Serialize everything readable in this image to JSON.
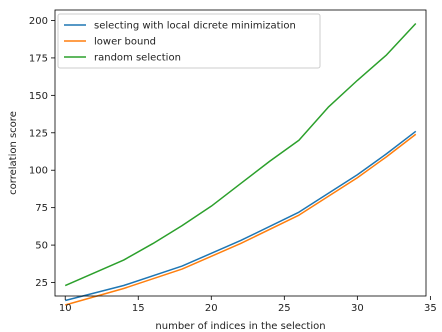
{
  "chart_data": {
    "type": "line",
    "title": "",
    "xlabel": "number of indices in the selection",
    "ylabel": "correlation score",
    "xlim": [
      9.3,
      34.7
    ],
    "ylim": [
      16,
      207
    ],
    "xticks": [
      10,
      15,
      20,
      25,
      30,
      35
    ],
    "yticks": [
      25,
      50,
      75,
      100,
      125,
      150,
      175,
      200
    ],
    "grid": false,
    "legend_position": "top-left",
    "series": [
      {
        "name": "selecting with local dicrete minimization",
        "color": "#1f77b4",
        "x": [
          10,
          14,
          18,
          22,
          26,
          30,
          32,
          34
        ],
        "y": [
          13,
          23,
          36,
          53,
          72,
          97,
          111,
          126
        ]
      },
      {
        "name": "lower bound",
        "color": "#ff7f0e",
        "x": [
          10,
          14,
          18,
          22,
          26,
          30,
          32,
          34
        ],
        "y": [
          10,
          21,
          34,
          51,
          70,
          95,
          109,
          124
        ]
      },
      {
        "name": "random selection",
        "color": "#2ca02c",
        "x": [
          10,
          14,
          16,
          18,
          20,
          22,
          24,
          26,
          28,
          30,
          32,
          34
        ],
        "y": [
          23,
          40,
          51,
          63,
          76,
          91,
          106,
          120,
          142,
          160,
          177,
          198
        ]
      }
    ]
  }
}
